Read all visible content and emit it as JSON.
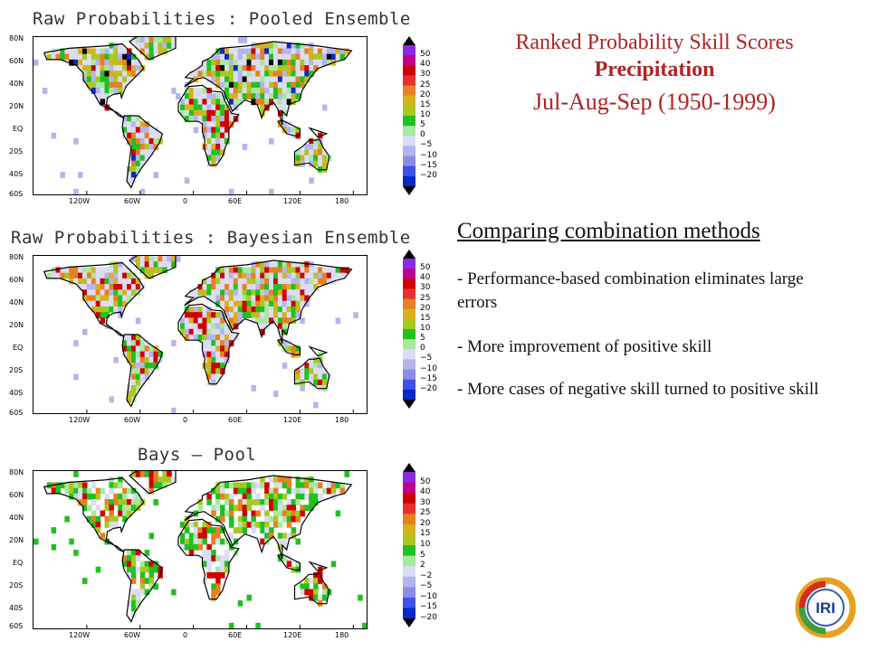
{
  "title": {
    "line1": "Ranked Probability Skill Scores",
    "line2": "Precipitation",
    "line3": "Jul-Aug-Sep (1950-1999)"
  },
  "section": {
    "heading": "Comparing combination methods",
    "bullets": [
      "- Performance-based combination eliminates large errors",
      "- More improvement of positive skill",
      "- More cases of negative skill turned to positive skill"
    ]
  },
  "panels": [
    {
      "title": "Raw Probabilities : Pooled Ensemble",
      "lat_labels": [
        "80N",
        "60N",
        "40N",
        "20N",
        "EQ",
        "20S",
        "40S",
        "60S"
      ],
      "lon_labels": [
        "120W",
        "60W",
        "0",
        "60E",
        "120E",
        "180"
      ],
      "colorbar_labels": [
        "50",
        "40",
        "30",
        "25",
        "20",
        "15",
        "10",
        "5",
        "0",
        "−5",
        "−10",
        "−15",
        "−20"
      ]
    },
    {
      "title": "Raw Probabilities : Bayesian Ensemble",
      "lat_labels": [
        "80N",
        "60N",
        "40N",
        "20N",
        "EQ",
        "20S",
        "40S",
        "60S"
      ],
      "lon_labels": [
        "120W",
        "60W",
        "0",
        "60E",
        "120E",
        "180"
      ],
      "colorbar_labels": [
        "50",
        "40",
        "30",
        "25",
        "20",
        "15",
        "10",
        "5",
        "0",
        "−5",
        "−10",
        "−15",
        "−20"
      ]
    },
    {
      "title": "Bays — Pool",
      "lat_labels": [
        "80N",
        "60N",
        "40N",
        "20N",
        "EQ",
        "20S",
        "40S",
        "60S"
      ],
      "lon_labels": [
        "120W",
        "60W",
        "0",
        "60E",
        "120E",
        "180"
      ],
      "colorbar_labels": [
        "50",
        "40",
        "30",
        "25",
        "20",
        "15",
        "10",
        "5",
        "2",
        "−2",
        "−5",
        "−10",
        "−15",
        "−20"
      ]
    }
  ],
  "colorbar_colors": [
    "#8a2be2",
    "#c00090",
    "#d00000",
    "#e83030",
    "#e88020",
    "#d8b020",
    "#a8c820",
    "#20c020",
    "#a8e8a0",
    "#dcdcf4",
    "#b4b4f0",
    "#8c8ce8",
    "#4050e8",
    "#0828c8"
  ],
  "logo": {
    "text": "IRI"
  }
}
